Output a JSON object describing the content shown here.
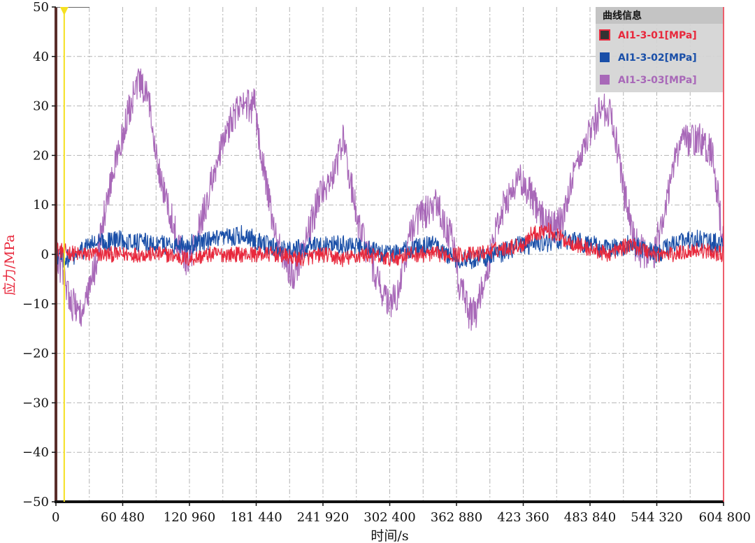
{
  "chart_data": {
    "type": "line",
    "title": "",
    "xlabel": "时间/s",
    "ylabel": "应力/MPa",
    "xlim": [
      0,
      604800
    ],
    "ylim": [
      -50,
      50
    ],
    "x_ticks": [
      0,
      60480,
      120960,
      181440,
      241920,
      302400,
      362880,
      423360,
      483840,
      544320,
      604800
    ],
    "x_tick_labels": [
      "0",
      "60 480",
      "120 960",
      "181 440",
      "241 920",
      "302 400",
      "362 880",
      "423 360",
      "483 840",
      "544 320",
      "604 800"
    ],
    "y_ticks": [
      -50,
      -40,
      -30,
      -20,
      -10,
      0,
      10,
      20,
      30,
      40,
      50
    ],
    "y_tick_labels": [
      "−50",
      "−40",
      "−30",
      "−20",
      "−10",
      "0",
      "10",
      "20",
      "30",
      "40",
      "50"
    ],
    "grid": true,
    "cursor_x": 7500,
    "legend": {
      "title": "曲线信息",
      "position": "top-right"
    },
    "series": [
      {
        "name": "AI1-3-01[MPa]",
        "color": "#e8283c",
        "noise": 1.6,
        "x": [
          0,
          20000,
          40000,
          60000,
          80000,
          100000,
          120000,
          140000,
          160000,
          181000,
          200000,
          220000,
          242000,
          260000,
          280000,
          302000,
          320000,
          340000,
          363000,
          380000,
          400000,
          423000,
          430000,
          445000,
          460000,
          484000,
          500000,
          520000,
          544000,
          560000,
          580000,
          604800
        ],
        "values": [
          1,
          0,
          0,
          0,
          0,
          0,
          -1,
          0,
          0,
          0,
          0,
          -1,
          0,
          -1,
          0,
          -1,
          0,
          0,
          0,
          0,
          1,
          2,
          4,
          5,
          3,
          1,
          0,
          2,
          0,
          0,
          1,
          0
        ]
      },
      {
        "name": "AI1-3-02[MPa]",
        "color": "#1a4fa8",
        "noise": 2.0,
        "x": [
          0,
          10000,
          20000,
          30000,
          60000,
          90000,
          120000,
          150000,
          170000,
          181000,
          200000,
          220000,
          242000,
          260000,
          280000,
          302000,
          320000,
          340000,
          363000,
          380000,
          400000,
          423000,
          440000,
          460000,
          484000,
          500000,
          520000,
          544000,
          560000,
          580000,
          604800
        ],
        "values": [
          0,
          -1,
          0,
          2,
          3,
          2,
          2,
          3,
          4,
          3,
          1,
          1,
          2,
          2,
          1,
          0,
          1,
          2,
          -1,
          -1,
          0,
          2,
          2,
          3,
          2,
          1,
          2,
          0,
          2,
          3,
          2
        ]
      },
      {
        "name": "AI1-3-03[MPa]",
        "color": "#a868b8",
        "noise": 3.5,
        "x": [
          0,
          8000,
          15000,
          25000,
          35000,
          50000,
          65000,
          75000,
          85000,
          95000,
          110000,
          120000,
          130000,
          145000,
          160000,
          170000,
          180000,
          190000,
          200000,
          215000,
          230000,
          240000,
          250000,
          260000,
          275000,
          290000,
          300000,
          310000,
          320000,
          330000,
          345000,
          360000,
          365000,
          375000,
          380000,
          390000,
          400000,
          410000,
          420000,
          430000,
          440000,
          450000,
          460000,
          470000,
          485000,
          495000,
          505000,
          515000,
          525000,
          540000,
          550000,
          560000,
          570000,
          585000,
          595000,
          604800
        ],
        "values": [
          0,
          -5,
          -10,
          -12,
          -3,
          15,
          28,
          35,
          30,
          15,
          3,
          -2,
          5,
          18,
          28,
          30,
          30,
          15,
          2,
          -4,
          5,
          13,
          15,
          23,
          5,
          -4,
          -10,
          -8,
          3,
          8,
          10,
          2,
          -6,
          -12,
          -12,
          -4,
          7,
          12,
          15,
          12,
          8,
          5,
          7,
          18,
          25,
          30,
          27,
          12,
          2,
          -2,
          8,
          19,
          23,
          23,
          20,
          2
        ]
      }
    ]
  }
}
